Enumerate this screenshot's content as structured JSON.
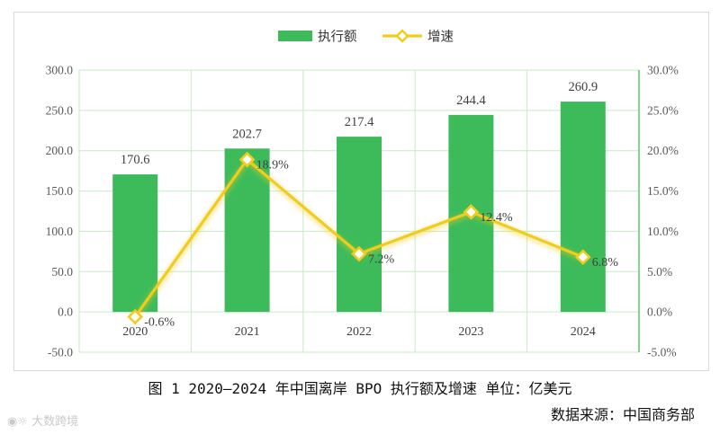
{
  "chart_data": {
    "type": "bar",
    "categories": [
      "2020",
      "2021",
      "2022",
      "2023",
      "2024"
    ],
    "series": [
      {
        "name": "执行额",
        "type": "bar",
        "axis": "left",
        "color": "#3dbb5b",
        "values": [
          170.6,
          202.7,
          217.4,
          244.4,
          260.9
        ],
        "labels": [
          "170.6",
          "202.7",
          "217.4",
          "244.4",
          "260.9"
        ]
      },
      {
        "name": "增速",
        "type": "line",
        "axis": "right",
        "color": "#f2cc1c",
        "values": [
          -0.6,
          18.9,
          7.2,
          12.4,
          6.8
        ],
        "labels": [
          "-0.6%",
          "18.9%",
          "7.2%",
          "12.4%",
          "6.8%"
        ]
      }
    ],
    "y_left": {
      "lim": [
        -50,
        300
      ],
      "ticks": [
        "-50.0",
        "0.0",
        "50.0",
        "100.0",
        "150.0",
        "200.0",
        "250.0",
        "300.0"
      ]
    },
    "y_right": {
      "lim": [
        -5,
        30
      ],
      "ticks": [
        "-5.0%",
        "0.0%",
        "5.0%",
        "10.0%",
        "15.0%",
        "20.0%",
        "25.0%",
        "30.0%"
      ]
    },
    "grid": true,
    "legend": "top-center"
  },
  "caption": "图 1 2020—2024 年中国离岸 BPO 执行额及增速 单位：亿美元",
  "source": "数据来源：中国商务部",
  "watermark": "大数跨境"
}
